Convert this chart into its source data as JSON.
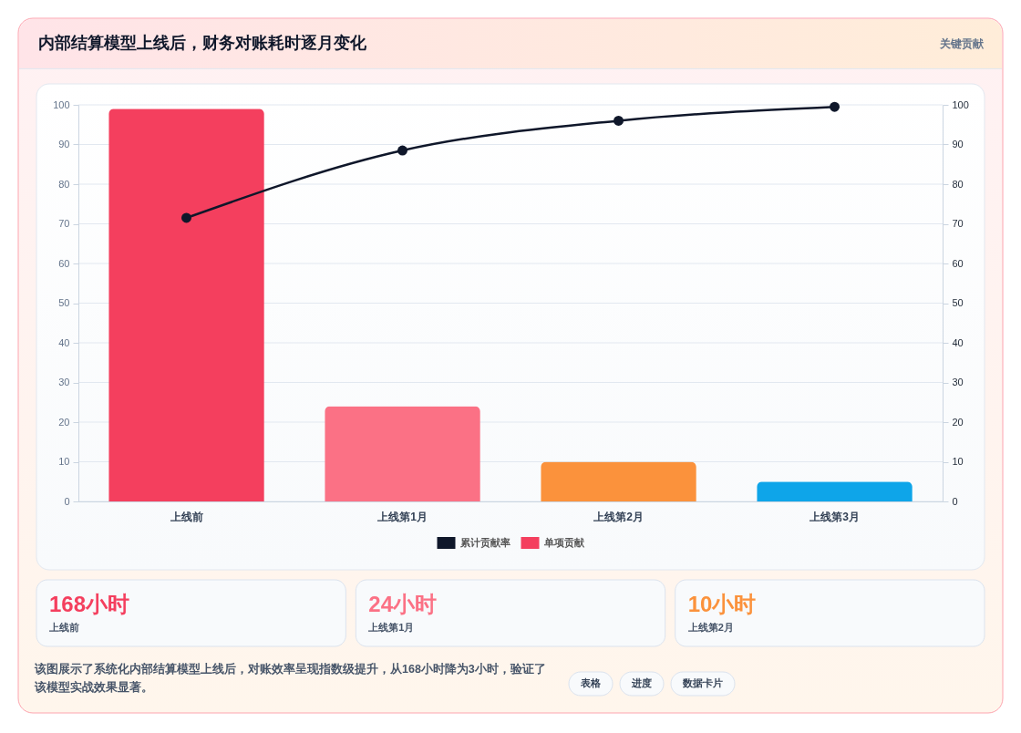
{
  "chart_data": [
    {
      "type": "bar",
      "title": "内部结算模型上线后，财务对账耗时逐月变化",
      "annotations": [
        "关键贡献"
      ],
      "categories": [
        "上线前",
        "上线第1月",
        "上线第2月",
        "上线第3月"
      ],
      "series": [
        {
          "name": "累计贡献率",
          "type": "line",
          "axis": "y2",
          "color": "#0f172a",
          "values": [
            71.5,
            88.5,
            96,
            99.5
          ]
        },
        {
          "name": "单项贡献",
          "color": "#f43f5e",
          "colors": [
            "#f43f5e",
            "#fb7185",
            "#fb923c",
            "#0ea5e9"
          ],
          "values": [
            99,
            24,
            10,
            5
          ]
        }
      ],
      "ylim": [
        0,
        100
      ],
      "yticks": [
        0,
        10,
        20,
        30,
        40,
        50,
        60,
        70,
        80,
        90,
        100
      ],
      "y2lim": [
        0,
        100
      ],
      "y2ticks": [
        0,
        10,
        20,
        30,
        40,
        50,
        60,
        70,
        80,
        90,
        100
      ],
      "grid": "y",
      "legend": "bottom",
      "marker": "circle"
    },
    {
      "type": "other",
      "title": "168小时",
      "subtitle": "上线前",
      "colors": [
        "#f43f5e"
      ]
    },
    {
      "type": "other",
      "title": "24小时",
      "subtitle": "上线第1月",
      "colors": [
        "#fb7185"
      ]
    },
    {
      "type": "other",
      "title": "10小时",
      "subtitle": "上线第2月",
      "colors": [
        "#fb923c"
      ]
    },
    {
      "type": "other",
      "annotations": [
        "该图展示了系统化内部结算模型上线后，对账效率呈现指数级提升，从168小时降为3小时，验证了该模型实战效果显著。",
        "表格",
        "进度",
        "数据卡片"
      ]
    }
  ]
}
